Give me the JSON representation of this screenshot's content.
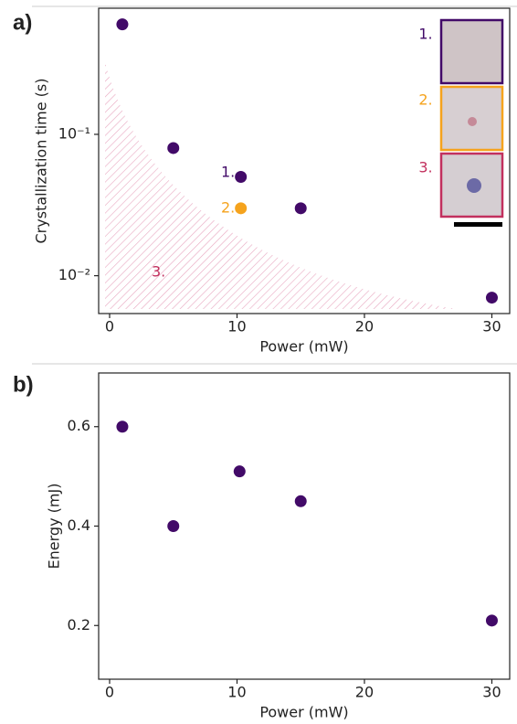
{
  "chart_data": [
    {
      "type": "scatter",
      "panel_label": "a)",
      "x_label": "Power (mW)",
      "y_label": "Crystallization time (s)",
      "log_y": true,
      "xlim": [
        -0.86,
        31.4
      ],
      "ylim": [
        0.0054,
        0.78
      ],
      "xticks": [
        0,
        10,
        20,
        30
      ],
      "yticks": [
        {
          "value": 0.01,
          "label": "10⁻²"
        },
        {
          "value": 0.1,
          "label": "10⁻¹"
        }
      ],
      "series": [
        {
          "color": "#420a68",
          "x": [
            1,
            5,
            10.3,
            10.3,
            15,
            30
          ],
          "values": [
            0.6,
            0.08,
            0.05,
            0.03,
            0.03,
            0.007
          ],
          "point_colors": [
            "#420a68",
            "#420a68",
            "#420a68",
            "#f5a31d",
            "#420a68",
            "#420a68"
          ]
        }
      ],
      "annotations": [
        {
          "text": "1.",
          "color": "#420a68"
        },
        {
          "text": "2.",
          "color": "#f5a31d"
        },
        {
          "text": "3.",
          "color": "#c2305e"
        }
      ],
      "inset_labels": [
        {
          "text": "1.",
          "color": "#420a68"
        },
        {
          "text": "2.",
          "color": "#f5a31d"
        },
        {
          "text": "3.",
          "color": "#c2305e"
        }
      ]
    },
    {
      "type": "scatter",
      "panel_label": "b)",
      "x_label": "Power (mW)",
      "y_label": "Energy (mJ)",
      "log_y": false,
      "xlim": [
        -0.86,
        31.4
      ],
      "ylim": [
        0.092,
        0.708
      ],
      "xticks": [
        0,
        10,
        20,
        30
      ],
      "yticks": [
        0.2,
        0.4,
        0.6
      ],
      "series": [
        {
          "color": "#420a68",
          "x": [
            1,
            5,
            10.2,
            15,
            30
          ],
          "values": [
            0.6,
            0.4,
            0.51,
            0.45,
            0.21
          ]
        }
      ]
    }
  ]
}
